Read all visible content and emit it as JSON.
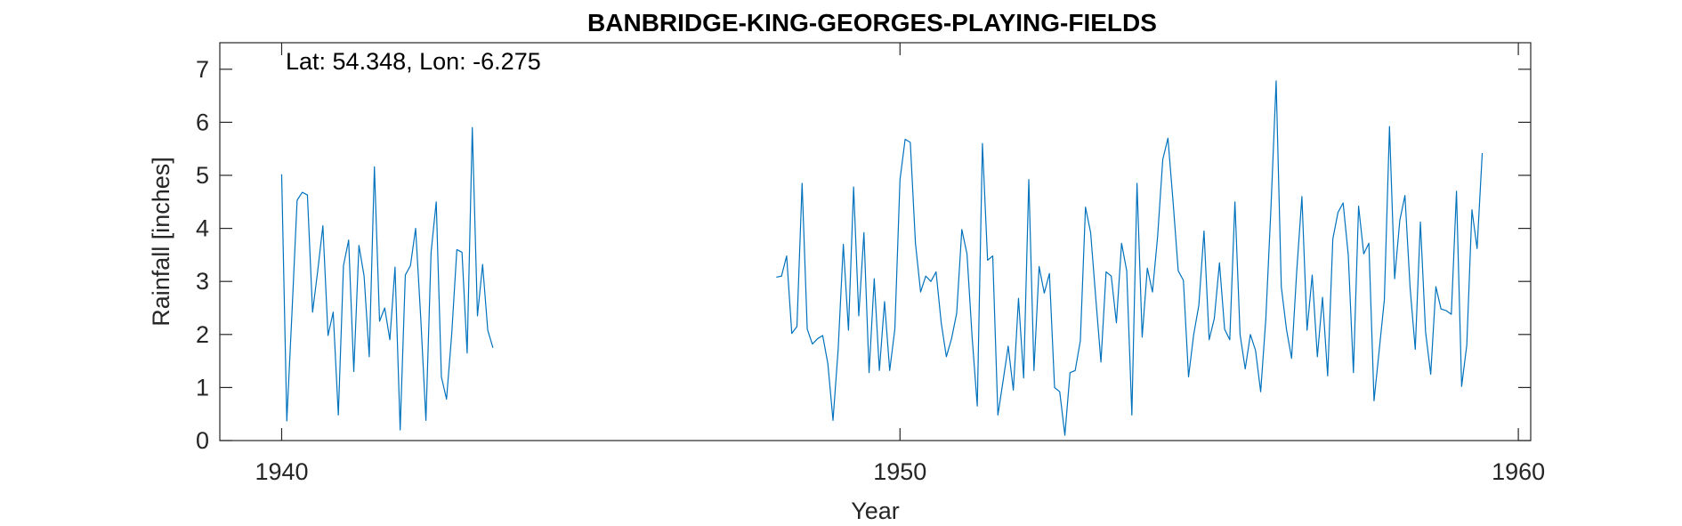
{
  "chart_data": {
    "type": "line",
    "title": "BANBRIDGE-KING-GEORGES-PLAYING-FIELDS",
    "xlabel": "Year",
    "ylabel": "Rainfall [inches]",
    "annotation": "Lat: 54.348, Lon: -6.275",
    "xlim": [
      1939,
      1960.2
    ],
    "ylim": [
      0,
      7.5
    ],
    "xticks": [
      1940,
      1950,
      1960
    ],
    "yticks": [
      0,
      1,
      2,
      3,
      4,
      5,
      6,
      7
    ],
    "grid": false,
    "line_color": "#0072BD",
    "series": [
      {
        "segments": [
          {
            "start": 1940.0,
            "step": 0.08333,
            "values": [
              5.02,
              0.37,
              2.4,
              4.53,
              4.68,
              4.63,
              2.42,
              3.2,
              4.05,
              1.98,
              2.42,
              0.48,
              3.3,
              3.78,
              1.3,
              3.68,
              3.1,
              1.58,
              5.16,
              2.25,
              2.5,
              1.9,
              3.27,
              0.2,
              3.12,
              3.3,
              4.0,
              2.3,
              0.38,
              3.55,
              4.5,
              1.2,
              0.78,
              2.0,
              3.6,
              3.55,
              1.65,
              5.9,
              2.35,
              3.32,
              2.08,
              1.75
            ]
          },
          {
            "start": 1948.0,
            "step": 0.08333,
            "values": [
              3.08,
              3.1,
              3.48,
              2.02,
              2.15,
              4.85,
              2.1,
              1.82,
              1.92,
              1.98,
              1.45,
              0.38,
              1.72,
              3.7,
              2.08,
              4.78,
              2.35,
              3.92,
              1.28,
              3.05,
              1.32,
              2.62,
              1.32,
              2.1,
              4.92,
              5.68,
              5.62,
              3.72,
              2.8,
              3.1,
              3.0,
              3.18,
              2.22,
              1.58,
              1.92,
              2.4,
              3.98,
              3.52,
              1.95,
              0.65,
              5.6,
              3.4,
              3.48,
              0.48,
              1.12,
              1.78,
              0.95,
              2.68,
              1.18,
              4.92,
              1.32,
              3.28,
              2.78,
              3.15,
              1.0,
              0.92,
              0.1,
              1.28,
              1.32,
              1.88,
              4.4,
              3.92,
              2.68,
              1.48,
              3.18,
              3.1,
              2.22,
              3.72,
              3.2,
              0.48,
              4.85,
              1.95,
              3.25,
              2.8,
              3.85,
              5.3,
              5.7,
              4.5,
              3.2,
              3.02,
              1.2,
              2.0,
              2.55,
              3.95,
              1.9,
              2.3,
              3.35,
              2.1,
              1.9,
              4.5,
              2.0,
              1.35,
              2.0,
              1.7,
              0.92,
              2.3,
              4.4,
              6.78,
              2.9,
              2.1,
              1.55,
              3.2,
              4.6,
              2.08,
              3.12,
              1.58,
              2.7,
              1.22,
              3.8,
              4.3,
              4.48,
              3.5,
              1.28,
              4.42,
              3.52,
              3.72,
              0.75,
              1.7,
              2.65,
              5.92,
              3.05,
              4.15,
              4.62,
              2.88,
              1.72,
              4.12,
              2.05,
              1.25,
              2.9,
              2.48,
              2.45,
              2.38,
              4.7,
              1.02,
              1.8,
              4.35,
              3.62,
              5.42
            ]
          }
        ]
      }
    ]
  }
}
